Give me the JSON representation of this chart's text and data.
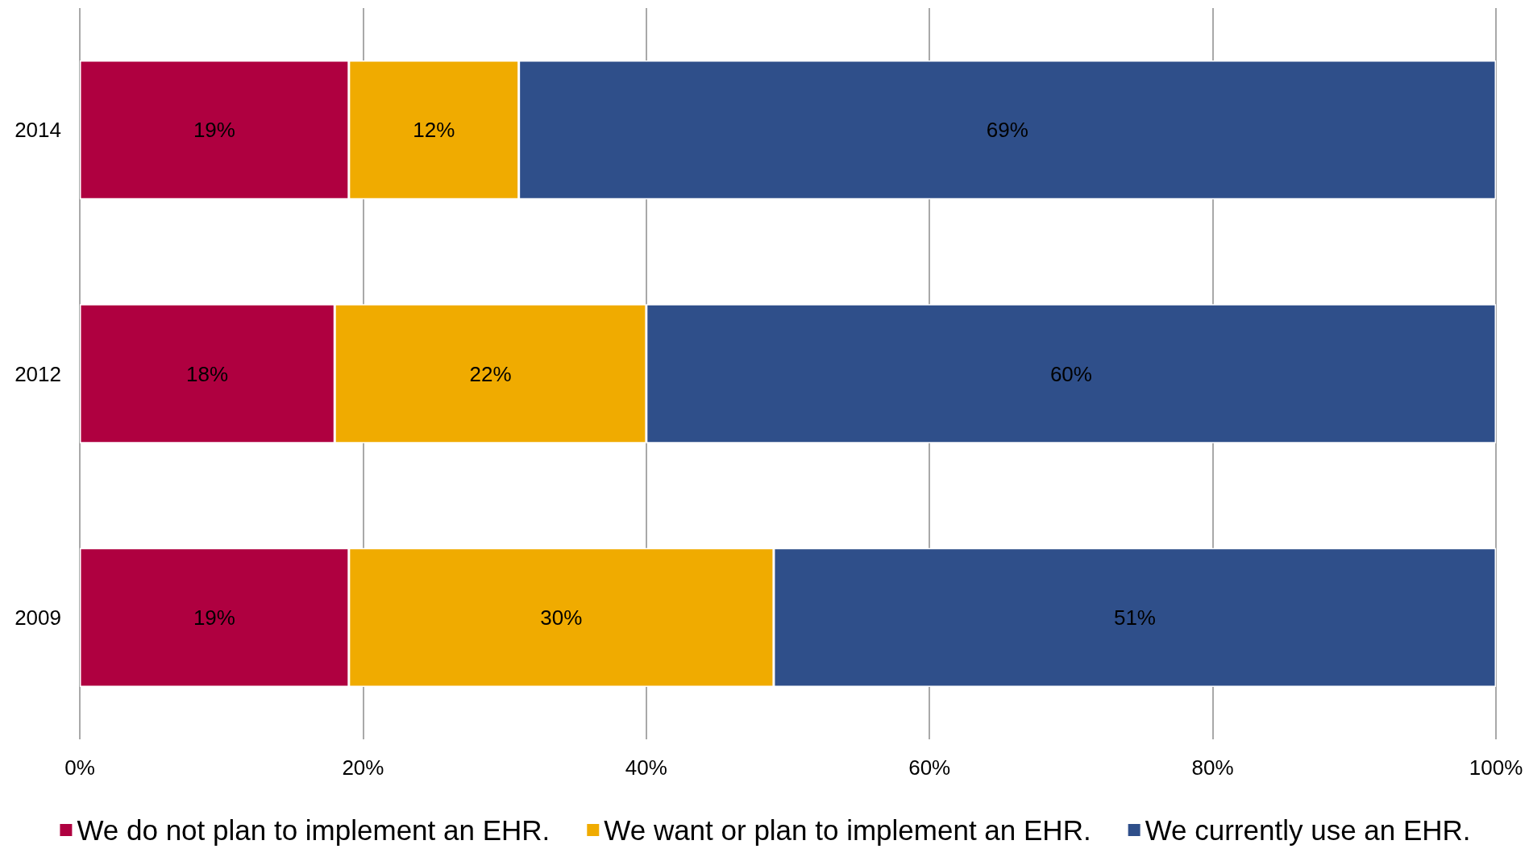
{
  "chart_data": {
    "type": "bar",
    "orientation": "horizontal",
    "stacked": true,
    "categories": [
      "2014",
      "2012",
      "2009"
    ],
    "series": [
      {
        "name": "We do not plan to implement an EHR.",
        "color": "#af0040",
        "values": [
          19,
          18,
          19
        ],
        "value_labels": [
          "19%",
          "18%",
          "19%"
        ]
      },
      {
        "name": "We want or plan to implement an EHR.",
        "color": "#f0ab00",
        "values": [
          12,
          22,
          30
        ],
        "value_labels": [
          "12%",
          "22%",
          "30%"
        ]
      },
      {
        "name": "We currently use an EHR.",
        "color": "#2f4f8a",
        "values": [
          69,
          60,
          51
        ],
        "value_labels": [
          "69%",
          "60%",
          "51%"
        ]
      }
    ],
    "xlim": [
      0,
      100
    ],
    "xticks": [
      {
        "value": 0,
        "label": "0%"
      },
      {
        "value": 20,
        "label": "20%"
      },
      {
        "value": 40,
        "label": "40%"
      },
      {
        "value": 60,
        "label": "60%"
      },
      {
        "value": 80,
        "label": "80%"
      },
      {
        "value": 100,
        "label": "100%"
      }
    ],
    "grid": "x",
    "legend": "bottom"
  }
}
